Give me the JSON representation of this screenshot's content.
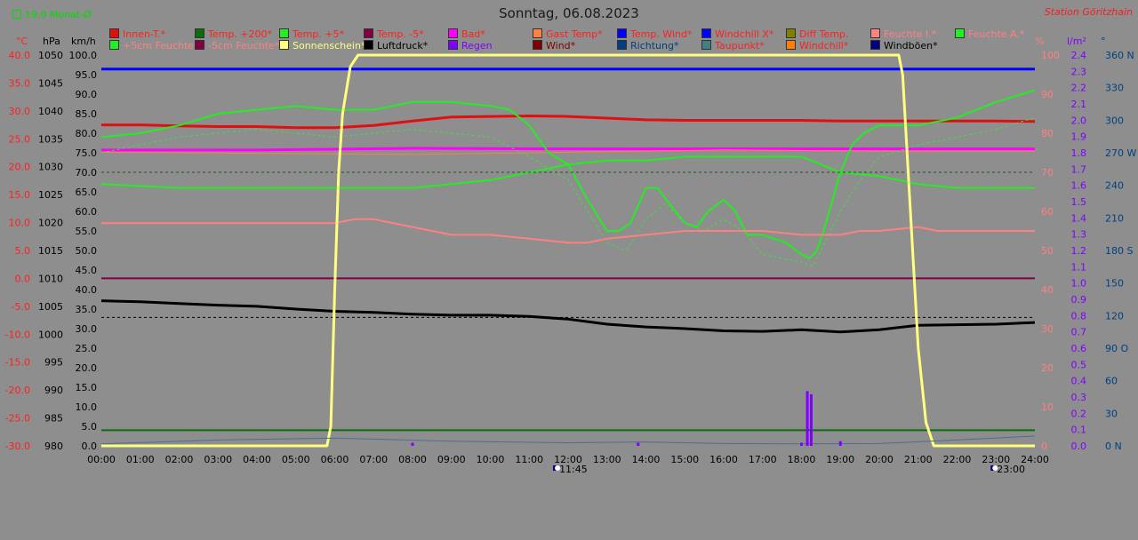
{
  "header": {
    "title": "Sonntag, 06.08.2023",
    "station": "Station Göritzhain",
    "month_label": "19.0 Monat-Ø"
  },
  "legend": [
    {
      "label": "Innen-T.*",
      "color": "#e01010",
      "text_color": "#ff2020"
    },
    {
      "label": "Temp. +200*",
      "color": "#0d6b0d",
      "text_color": "#ff2020"
    },
    {
      "label": "Temp. +5*",
      "color": "#22ee22",
      "text_color": "#ff2020"
    },
    {
      "label": "Temp. -5*",
      "color": "#800040",
      "text_color": "#ff2020"
    },
    {
      "label": "Bad*",
      "color": "#ff00ff",
      "text_color": "#ff2020"
    },
    {
      "label": "Gast Temp*",
      "color": "#ff8040",
      "text_color": "#ff2020"
    },
    {
      "label": "Temp. Wind*",
      "color": "#0000ff",
      "text_color": "#ff2020"
    },
    {
      "label": "Windchill X*",
      "color": "#0000ff",
      "text_color": "#ff2020"
    },
    {
      "label": "Diff Temp.",
      "color": "#808000",
      "text_color": "#ff2020"
    },
    {
      "label": "Feuchte I.*",
      "color": "#ff8080",
      "text_color": "#ff8080"
    },
    {
      "label": "Feuchte A.*",
      "color": "#22ee22",
      "text_color": "#ff8080"
    },
    {
      "label": "+5cm Feuchte*",
      "color": "#22ee22",
      "text_color": "#ff8080"
    },
    {
      "label": "-5cm Feuchte*",
      "color": "#800040",
      "text_color": "#ff8080"
    },
    {
      "label": "Sonnenschein*",
      "color": "#ffff80",
      "text_color": "#ffff80"
    },
    {
      "label": "Luftdruck*",
      "color": "#000000",
      "text_color": "#000000"
    },
    {
      "label": "Regen",
      "color": "#8000ff",
      "text_color": "#8000ff"
    },
    {
      "label": "Wind*",
      "color": "#800000",
      "text_color": "#800000"
    },
    {
      "label": "Richtung*",
      "color": "#004080",
      "text_color": "#004080"
    },
    {
      "label": "Taupunkt*",
      "color": "#408080",
      "text_color": "#ff2020"
    },
    {
      "label": "Windchill*",
      "color": "#ff8000",
      "text_color": "#ff2020"
    },
    {
      "label": "Windböen*",
      "color": "#000080",
      "text_color": "#000000"
    }
  ],
  "axes": {
    "temp": {
      "unit": "°C",
      "ticks": [
        "40.0",
        "35.0",
        "30.0",
        "25.0",
        "20.0",
        "15.0",
        "10.0",
        "5.0",
        "0.0",
        "-5.0",
        "-10.0",
        "-15.0",
        "-20.0",
        "-25.0",
        "-30.0"
      ],
      "color": "#ff2020",
      "range": [
        -30,
        40
      ]
    },
    "pressure": {
      "unit": "hPa",
      "ticks": [
        "1050",
        "1045",
        "1040",
        "1035",
        "1030",
        "1025",
        "1020",
        "1015",
        "1010",
        "1005",
        "1000",
        "995",
        "990",
        "985",
        "980"
      ],
      "color": "#000000",
      "range": [
        980,
        1050
      ]
    },
    "wind": {
      "unit": "km/h",
      "ticks": [
        "100.0",
        "95.0",
        "90.0",
        "85.0",
        "80.0",
        "75.0",
        "70.0",
        "65.0",
        "60.0",
        "55.0",
        "50.0",
        "45.0",
        "40.0",
        "35.0",
        "30.0",
        "25.0",
        "20.0",
        "15.0",
        "10.0",
        "5.0",
        "0.0"
      ],
      "color": "#000000",
      "range": [
        0,
        100
      ]
    },
    "humidity": {
      "unit": "%",
      "ticks": [
        "100",
        "90",
        "80",
        "70",
        "60",
        "50",
        "40",
        "30",
        "20",
        "10",
        "0"
      ],
      "color": "#ff8080",
      "range": [
        0,
        100
      ]
    },
    "rain": {
      "unit": "l/m²",
      "ticks": [
        "2.4",
        "2.3",
        "2.2",
        "2.1",
        "2.0",
        "1.9",
        "1.8",
        "1.7",
        "1.6",
        "1.5",
        "1.4",
        "1.3",
        "1.2",
        "1.1",
        "1.0",
        "0.9",
        "0.8",
        "0.7",
        "0.6",
        "0.5",
        "0.4",
        "0.3",
        "0.2",
        "0.1",
        "0.0"
      ],
      "color": "#8000ff",
      "range": [
        0,
        2.5
      ]
    },
    "direction": {
      "unit": "°",
      "ticks": [
        "360 N",
        "330",
        "300",
        "270 W",
        "240",
        "210",
        "180 S",
        "150",
        "120",
        "90  O",
        "60",
        "30",
        "0   N"
      ],
      "color": "#004080",
      "range": [
        0,
        360
      ]
    },
    "time": {
      "ticks": [
        "00:00",
        "01:00",
        "02:00",
        "03:00",
        "04:00",
        "05:00",
        "06:00",
        "07:00",
        "08:00",
        "09:00",
        "10:00",
        "11:00",
        "12:00",
        "13:00",
        "14:00",
        "15:00",
        "16:00",
        "17:00",
        "18:00",
        "19:00",
        "20:00",
        "21:00",
        "22:00",
        "23:00",
        "24:00"
      ]
    }
  },
  "markers": [
    {
      "label": "11:45",
      "hour": 11.75
    },
    {
      "label": "23:00",
      "hour": 23.0
    }
  ],
  "chart_data": {
    "type": "line",
    "title": "Sonntag, 06.08.2023",
    "x_range_hours": [
      0,
      24
    ],
    "series": [
      {
        "name": "Innen-T.*",
        "axis": "temp",
        "color": "#e01010",
        "width": 3,
        "x": [
          0,
          1,
          2,
          3,
          4,
          5,
          6,
          7,
          8,
          9,
          10,
          11,
          12,
          13,
          14,
          15,
          16,
          17,
          18,
          19,
          20,
          21,
          22,
          23,
          24
        ],
        "y": [
          27.5,
          27.5,
          27.3,
          27.2,
          27.2,
          27.0,
          27.0,
          27.4,
          28.2,
          28.9,
          29.0,
          29.1,
          29.0,
          28.7,
          28.4,
          28.3,
          28.3,
          28.3,
          28.3,
          28.2,
          28.2,
          28.2,
          28.2,
          28.2,
          28.1
        ]
      },
      {
        "name": "Temp. -5*",
        "axis": "temp",
        "color": "#800040",
        "width": 2,
        "x": [
          0,
          24
        ],
        "y": [
          0,
          0
        ]
      },
      {
        "name": "Temp. +200*",
        "axis": "temp",
        "color": "#0d6b0d",
        "width": 2,
        "x": [
          0,
          24
        ],
        "y": [
          -27.2,
          -27.2
        ]
      },
      {
        "name": "Bad*",
        "axis": "temp",
        "color": "#ff00ff",
        "width": 3,
        "x": [
          0,
          4,
          8,
          12,
          16,
          20,
          24
        ],
        "y": [
          23.0,
          23.0,
          23.3,
          23.2,
          23.2,
          23.2,
          23.2
        ]
      },
      {
        "name": "Gast Temp*",
        "axis": "temp",
        "color": "#ff8040",
        "width": 1,
        "x": [
          0,
          4,
          8,
          12,
          16,
          20,
          24
        ],
        "y": [
          22.6,
          22.4,
          22.2,
          22.6,
          23.0,
          22.8,
          22.8
        ]
      },
      {
        "name": "Temp. Wind*",
        "axis": "temp",
        "color": "#0000ff",
        "width": 3,
        "x": [
          0,
          24
        ],
        "y": [
          37.5,
          37.5
        ]
      },
      {
        "name": "Feuchte A.*",
        "axis": "humidity",
        "color": "#22ee22",
        "width": 2,
        "x": [
          0,
          1,
          2,
          3,
          4,
          5,
          6,
          7,
          8,
          9,
          10,
          10.5,
          11,
          11.5,
          12,
          12.5,
          13,
          13.3,
          13.6,
          14,
          14.3,
          14.6,
          15,
          15.3,
          15.6,
          16,
          16.3,
          16.6,
          17,
          17.3,
          17.6,
          18,
          18.2,
          18.4,
          18.6,
          18.8,
          19,
          19.3,
          19.6,
          20,
          20.5,
          21,
          22,
          23,
          24
        ],
        "y": [
          79,
          80,
          82,
          85,
          86,
          87,
          86,
          86,
          88,
          88,
          87,
          86,
          82,
          75,
          72,
          63,
          55,
          55,
          57,
          66,
          66,
          62,
          57,
          56,
          60,
          63,
          60,
          54,
          54,
          53,
          52,
          49,
          48,
          50,
          56,
          63,
          70,
          77,
          80,
          82,
          82,
          82,
          84,
          88,
          91
        ]
      },
      {
        "name": "+5cm Feuchte*",
        "axis": "humidity",
        "color": "#22ee22",
        "width": 2,
        "x": [
          0,
          2,
          4,
          6,
          8,
          10,
          11,
          12,
          13,
          14,
          15,
          16,
          17,
          17.5,
          18,
          18.5,
          19,
          20,
          21,
          22,
          23,
          24
        ],
        "y": [
          67,
          66,
          66,
          66,
          66,
          68,
          70,
          72,
          73,
          73,
          74,
          74,
          74,
          74,
          74,
          72,
          70,
          69,
          67,
          66,
          66,
          66
        ]
      },
      {
        "name": "Taupunkt (dotted)",
        "axis": "humidity",
        "color": "#44dd44",
        "width": 1,
        "dash": true,
        "x": [
          0,
          1,
          2,
          3,
          4,
          5,
          6,
          7,
          8,
          9,
          10,
          11,
          12,
          12.5,
          13,
          13.5,
          14,
          14.5,
          15,
          15.5,
          16,
          16.5,
          17,
          17.5,
          18,
          18.3,
          18.6,
          19,
          19.5,
          20,
          21,
          22,
          23,
          24
        ],
        "y": [
          75,
          77,
          79,
          80,
          81,
          80,
          79,
          80,
          81,
          80,
          79,
          74,
          68,
          60,
          52,
          50,
          58,
          62,
          57,
          55,
          58,
          55,
          49,
          48,
          47,
          46,
          52,
          60,
          68,
          74,
          77,
          79,
          81,
          84
        ]
      },
      {
        "name": "Feuchte I.*",
        "axis": "humidity",
        "color": "#ff8080",
        "width": 2,
        "x": [
          0,
          1,
          2,
          3,
          4,
          5,
          6,
          6.5,
          7,
          8,
          9,
          10,
          11,
          12,
          12.5,
          13,
          14,
          15,
          16,
          17,
          18,
          19,
          19.5,
          20,
          21,
          21.5,
          22,
          23,
          24
        ],
        "y": [
          57,
          57,
          57,
          57,
          57,
          57,
          57,
          58,
          58,
          56,
          54,
          54,
          53,
          52,
          52,
          53,
          54,
          55,
          55,
          55,
          54,
          54,
          55,
          55,
          56,
          55,
          55,
          55,
          55
        ]
      },
      {
        "name": "Luftdruck*",
        "axis": "pressure",
        "color": "#000000",
        "width": 3,
        "x": [
          0,
          1,
          2,
          3,
          4,
          5,
          6,
          7,
          8,
          9,
          10,
          11,
          12,
          13,
          14,
          15,
          16,
          17,
          18,
          19,
          20,
          21,
          22,
          23,
          24
        ],
        "y": [
          1006.0,
          1005.8,
          1005.5,
          1005.2,
          1005.0,
          1004.5,
          1004.1,
          1003.9,
          1003.6,
          1003.4,
          1003.4,
          1003.2,
          1002.7,
          1001.8,
          1001.3,
          1001.0,
          1000.6,
          1000.5,
          1000.8,
          1000.4,
          1000.8,
          1001.6,
          1001.7,
          1001.8,
          1002.1
        ]
      },
      {
        "name": "Luftdruck (dash)",
        "axis": "pressure",
        "color": "#000000",
        "width": 1,
        "dash": true,
        "x": [
          0,
          24
        ],
        "y": [
          1003.0,
          1003.0
        ]
      },
      {
        "name": "Diff Temp. (dash)",
        "axis": "humidity",
        "color": "#244f24",
        "width": 1,
        "dash": true,
        "x": [
          0,
          24
        ],
        "y": [
          70,
          70
        ]
      },
      {
        "name": "Sonnenschein*",
        "axis": "humidity",
        "color": "#ffff80",
        "width": 3,
        "x": [
          0,
          5.8,
          5.9,
          6.0,
          6.1,
          6.2,
          6.4,
          6.6,
          20.5,
          20.6,
          20.8,
          21.0,
          21.2,
          21.4,
          24
        ],
        "y": [
          0,
          0,
          5,
          40,
          70,
          85,
          97,
          100,
          100,
          95,
          60,
          25,
          6,
          0,
          0
        ]
      },
      {
        "name": "Wind*",
        "axis": "wind",
        "color": "#4a7090",
        "width": 1,
        "x": [
          0,
          3,
          6,
          9,
          12,
          14,
          16,
          18,
          20,
          22,
          24
        ],
        "y": [
          0.5,
          1.5,
          2.0,
          1.2,
          0.8,
          1.0,
          0.6,
          0.5,
          0.6,
          1.5,
          2.5
        ]
      }
    ],
    "rain_bars": {
      "axis": "rain",
      "color": "#8000ff",
      "x": [
        8.0,
        13.8,
        18.0,
        18.15,
        18.25,
        19.0
      ],
      "y": [
        0.02,
        0.02,
        0.02,
        0.35,
        0.33,
        0.03
      ]
    }
  }
}
